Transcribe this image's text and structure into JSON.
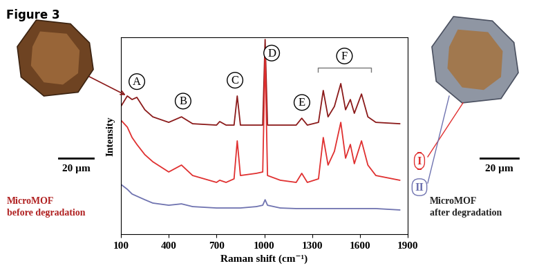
{
  "chart_data": {
    "type": "line",
    "title": "Figure 3",
    "x_label": "Raman shift (cm⁻¹)",
    "y_label": "Intensity",
    "x": [
      100,
      140,
      170,
      200,
      250,
      300,
      400,
      480,
      550,
      700,
      720,
      760,
      810,
      830,
      850,
      950,
      990,
      1005,
      1020,
      1100,
      1200,
      1235,
      1270,
      1340,
      1370,
      1400,
      1440,
      1480,
      1510,
      1540,
      1565,
      1610,
      1650,
      1700,
      1850
    ],
    "series": [
      {
        "color": "#8b1a1a",
        "values": [
          64.9,
          70.2,
          68.4,
          69.5,
          63.2,
          59.6,
          56.8,
          59.6,
          56.1,
          55.4,
          57.2,
          55.4,
          55.4,
          70.2,
          55.4,
          55.4,
          55.4,
          98.9,
          55.4,
          55.4,
          55.4,
          58.9,
          55.4,
          56.8,
          73.0,
          59.6,
          64.9,
          76.5,
          63.2,
          68.4,
          61.4,
          71.2,
          59.6,
          56.8,
          56.1
        ]
      },
      {
        "name": "I",
        "color": "#e03030",
        "values": [
          57.9,
          54.4,
          49.1,
          45.6,
          40.4,
          36.8,
          31.6,
          35.1,
          29.8,
          26.3,
          27.4,
          26.3,
          28.1,
          47.4,
          29.8,
          30.9,
          31.6,
          91.2,
          29.8,
          27.4,
          26.3,
          30.9,
          26.3,
          28.1,
          49.1,
          35.1,
          42.1,
          56.8,
          38.6,
          45.6,
          35.8,
          47.4,
          35.1,
          29.8,
          27.4
        ]
      },
      {
        "name": "II",
        "color": "#6f73b0",
        "values": [
          25.3,
          22.8,
          20.4,
          19.3,
          17.5,
          15.8,
          14.7,
          15.4,
          14.0,
          13.3,
          13.3,
          13.3,
          13.3,
          13.3,
          13.3,
          14.0,
          14.7,
          17.5,
          14.7,
          13.3,
          13.0,
          13.0,
          13.0,
          13.0,
          13.0,
          13.0,
          13.0,
          13.0,
          13.0,
          13.0,
          13.0,
          13.0,
          13.0,
          13.0,
          12.3
        ]
      }
    ],
    "xlim": [
      100,
      1900
    ],
    "ylim": [
      0,
      100
    ],
    "xticks": [
      100,
      400,
      700,
      1000,
      1300,
      1600,
      1900
    ],
    "tick_labels": "x",
    "annotations": [
      {
        "text": "A",
        "x": 200
      },
      {
        "text": "B",
        "x": 490
      },
      {
        "text": "C",
        "x": 816
      },
      {
        "text": "D",
        "x": 1046
      },
      {
        "text": "E",
        "x": 1236
      },
      {
        "text": "F",
        "x": [
          1336,
          1670
        ]
      }
    ],
    "images": [
      {
        "caption": "MicroMOF\nbefore degradation",
        "scale_bar": "20 µm"
      },
      {
        "caption": "MicroMOF\nafter degradation",
        "scale_bar": "20 µm"
      }
    ]
  }
}
